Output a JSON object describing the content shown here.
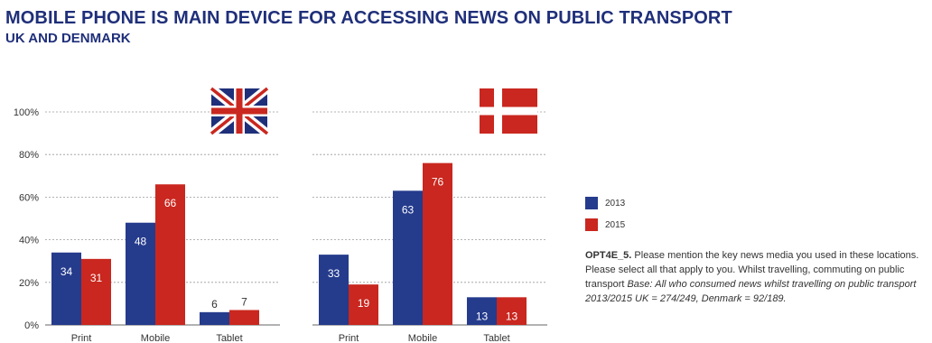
{
  "header": {
    "title": "MOBILE PHONE IS MAIN DEVICE FOR ACCESSING NEWS ON PUBLIC TRANSPORT",
    "subtitle": "UK AND DENMARK"
  },
  "colors": {
    "2013": "#253b8c",
    "2015": "#c9271f"
  },
  "legend": [
    {
      "label": "2013",
      "color": "#253b8c"
    },
    {
      "label": "2015",
      "color": "#c9271f"
    }
  ],
  "note": {
    "code": "OPT4E_5.",
    "question": " Please mention the key news media you used in these locations. Please select all that apply to you. Whilst travelling, commuting on public transport ",
    "base": "Base: All who consumed news whilst travelling on public transport 2013/2015 UK = 274/249, Denmark = 92/189."
  },
  "chart_data": [
    {
      "type": "bar",
      "flag": "uk-flag-icon",
      "categories": [
        "Print",
        "Mobile",
        "Tablet"
      ],
      "series": [
        {
          "name": "2013",
          "values": [
            34,
            48,
            6
          ]
        },
        {
          "name": "2015",
          "values": [
            31,
            66,
            7
          ]
        }
      ],
      "ylim": [
        0,
        100
      ],
      "yticks": [
        "0%",
        "20%",
        "40%",
        "60%",
        "80%",
        "100%"
      ],
      "grid": true
    },
    {
      "type": "bar",
      "flag": "denmark-flag-icon",
      "categories": [
        "Print",
        "Mobile",
        "Tablet"
      ],
      "series": [
        {
          "name": "2013",
          "values": [
            33,
            63,
            13
          ]
        },
        {
          "name": "2015",
          "values": [
            19,
            76,
            13
          ]
        }
      ],
      "ylim": [
        0,
        100
      ],
      "grid": true
    }
  ]
}
